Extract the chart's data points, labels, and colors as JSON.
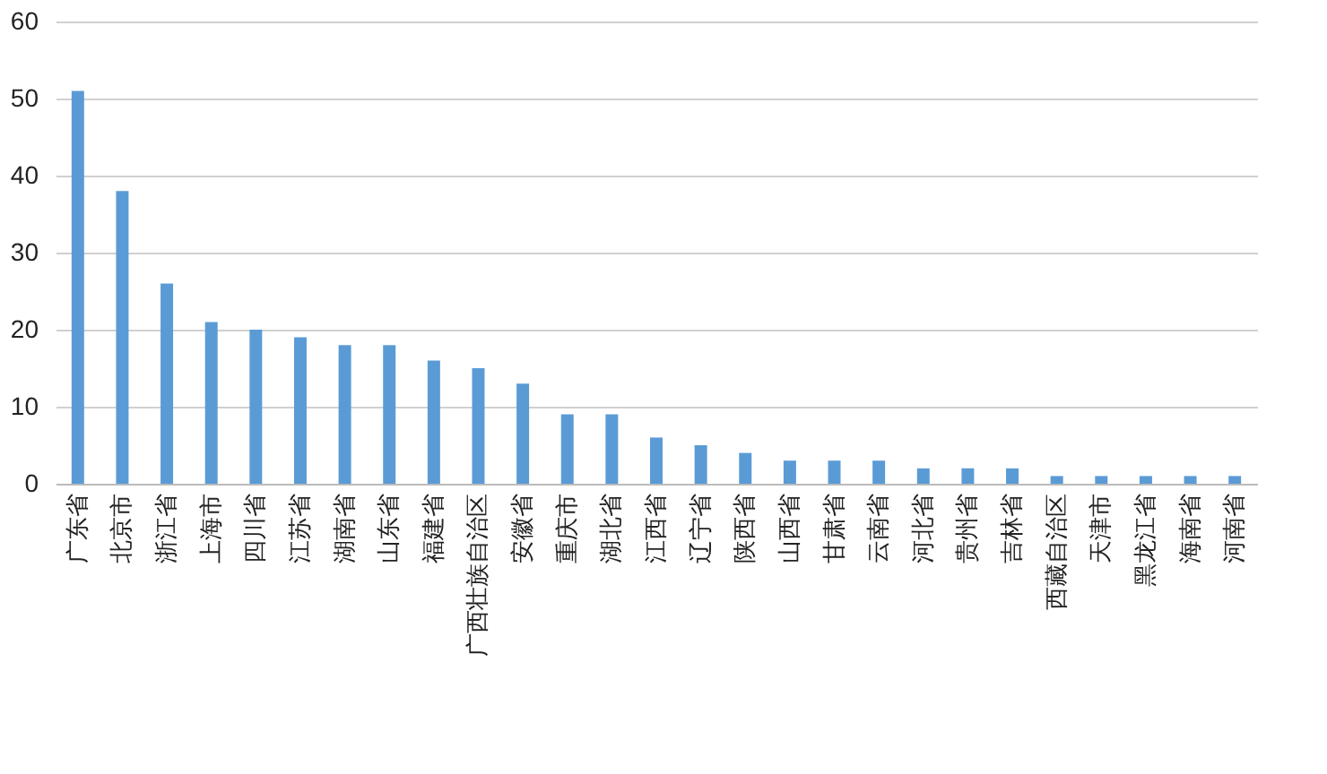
{
  "chart_data": {
    "type": "bar",
    "categories": [
      "广东省",
      "北京市",
      "浙江省",
      "上海市",
      "四川省",
      "江苏省",
      "湖南省",
      "山东省",
      "福建省",
      "广西壮族自治区",
      "安徽省",
      "重庆市",
      "湖北省",
      "江西省",
      "辽宁省",
      "陕西省",
      "山西省",
      "甘肃省",
      "云南省",
      "河北省",
      "贵州省",
      "吉林省",
      "西藏自治区",
      "天津市",
      "黑龙江省",
      "海南省",
      "河南省"
    ],
    "values": [
      51,
      38,
      26,
      21,
      20,
      19,
      18,
      18,
      16,
      15,
      13,
      9,
      9,
      6,
      5,
      4,
      3,
      3,
      3,
      2,
      2,
      2,
      1,
      1,
      1,
      1,
      1
    ],
    "color": "#5b9bd5",
    "ylim": [
      0,
      60
    ],
    "yticks": [
      0,
      10,
      20,
      30,
      40,
      50,
      60
    ],
    "grid": "y"
  }
}
